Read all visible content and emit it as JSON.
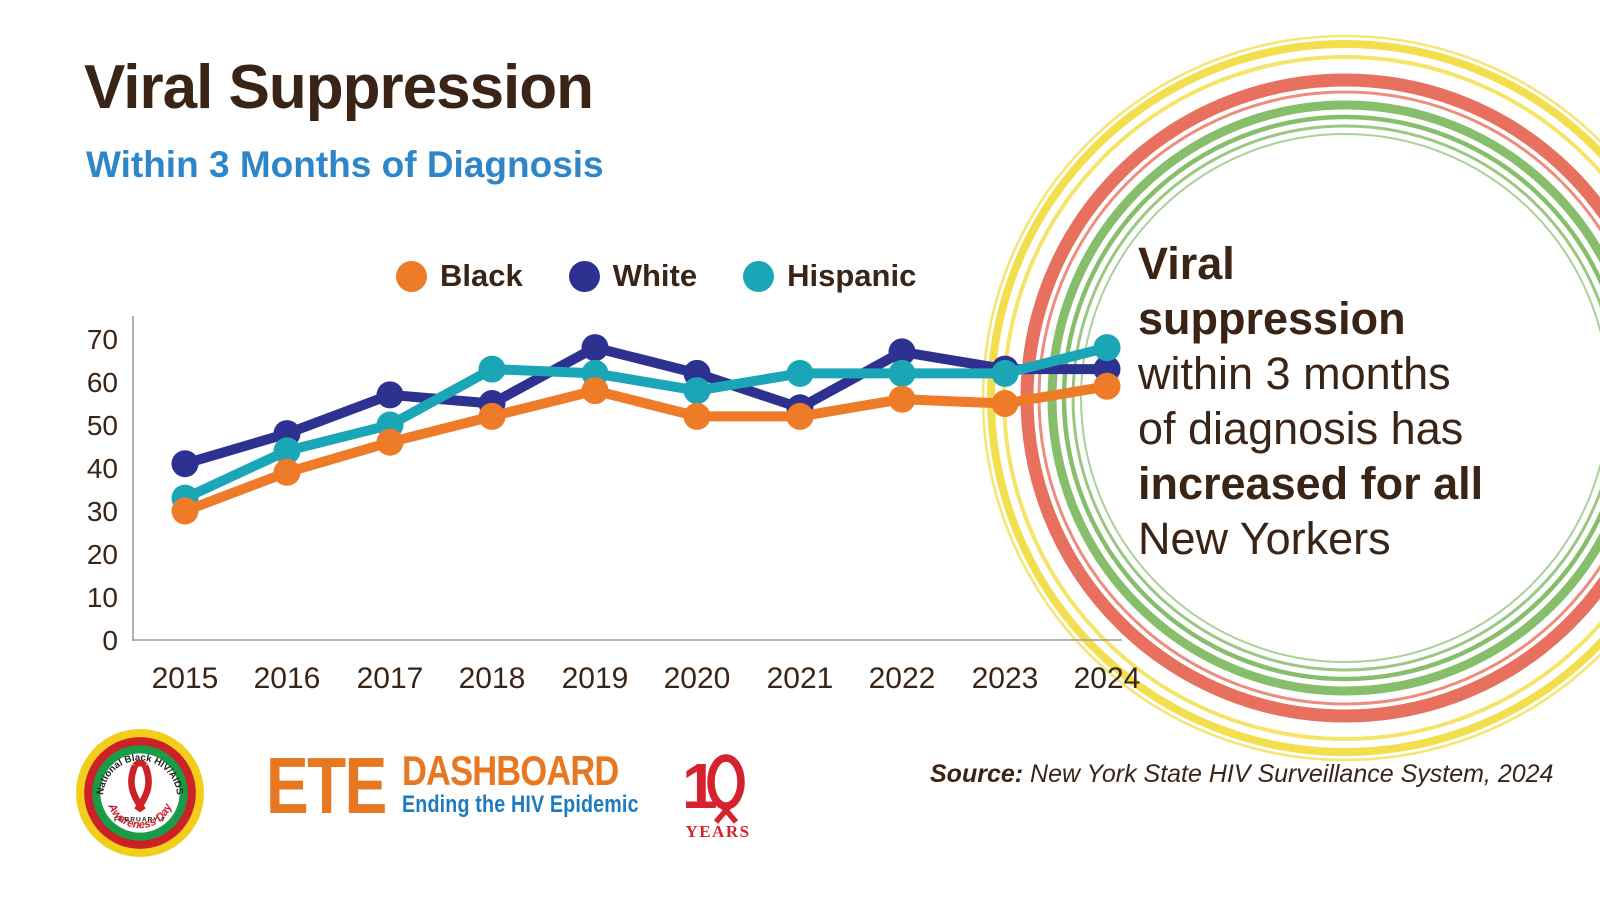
{
  "header": {
    "title": "Viral Suppression",
    "subtitle": "Within 3 Months of Diagnosis",
    "title_color": "#3A2415",
    "subtitle_color": "#2E86C8"
  },
  "legend": {
    "items": [
      {
        "label": "Black",
        "color": "#EE7B28"
      },
      {
        "label": "White",
        "color": "#2D3190"
      },
      {
        "label": "Hispanic",
        "color": "#1BA6B8"
      }
    ]
  },
  "chart_data": {
    "type": "line",
    "x": [
      2015,
      2016,
      2017,
      2018,
      2019,
      2020,
      2021,
      2022,
      2023,
      2024
    ],
    "series": [
      {
        "name": "Black",
        "color": "#EE7B28",
        "values": [
          30,
          39,
          46,
          52,
          58,
          52,
          52,
          56,
          55,
          59
        ]
      },
      {
        "name": "White",
        "color": "#2D3190",
        "values": [
          41,
          48,
          57,
          55,
          68,
          62,
          54,
          67,
          63,
          63
        ]
      },
      {
        "name": "Hispanic",
        "color": "#1BA6B8",
        "values": [
          33,
          44,
          50,
          63,
          62,
          58,
          62,
          62,
          62,
          68
        ]
      }
    ],
    "ylim": [
      0,
      70
    ],
    "yticks": [
      0,
      10,
      20,
      30,
      40,
      50,
      60,
      70
    ],
    "grid": false,
    "legend_position": "top",
    "axis_color": "#9b9b9b",
    "tick_label_color": "#3A2415"
  },
  "callout": {
    "color": "#3A2415",
    "lines": [
      "Viral",
      "suppression",
      "within 3 months",
      "of diagnosis has",
      "increased for all",
      "New Yorkers"
    ]
  },
  "decor_rings": {
    "yellow": "#F3DF4D",
    "salmon": "#E7705E",
    "green": "#86BE6C"
  },
  "awareness_badge": {
    "top_text": "National Black HIV/AIDS",
    "date_text": "FEBRUARY 7",
    "bottom_text": "Awareness Day",
    "outer_color": "#F2CE1B",
    "middle_color": "#CB2127",
    "inner_color": "#199B48",
    "ribbon_color": "#CB2127"
  },
  "ete_logo": {
    "ete": "ETE",
    "dashboard": "DASHBOARD",
    "tagline": "Ending the HIV Epidemic",
    "anniversary_number_one": "1",
    "anniversary_word": "YEARS",
    "orange": "#E87722",
    "blue": "#1E7BBF",
    "red": "#D5232E"
  },
  "source": {
    "label": "Source:",
    "text": " New York State HIV Surveillance System, 2024"
  }
}
